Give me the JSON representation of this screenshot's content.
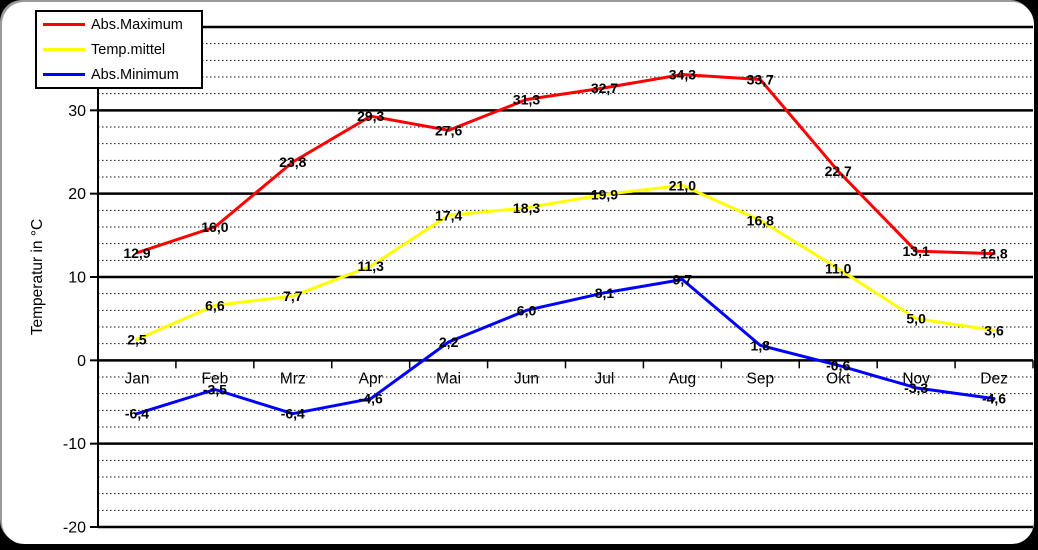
{
  "chart_data": {
    "type": "line",
    "title": "",
    "ylabel": "Temperatur in °C",
    "xlabel": "",
    "categories": [
      "Jan",
      "Feb",
      "Mrz",
      "Apr",
      "Mai",
      "Jun",
      "Jul",
      "Aug",
      "Sep",
      "Okt",
      "Nov",
      "Dez"
    ],
    "series": [
      {
        "name": "Abs.Maximum",
        "color": "#ff0000",
        "values": [
          12.9,
          16.0,
          23.8,
          29.3,
          27.6,
          31.3,
          32.7,
          34.3,
          33.7,
          22.7,
          13.1,
          12.8
        ],
        "labels": [
          "12,9",
          "16,0",
          "23,8",
          "29,3",
          "27,6",
          "31,3",
          "32,7",
          "34,3",
          "33,7",
          "22,7",
          "13,1",
          "12,8"
        ]
      },
      {
        "name": "Temp.mittel",
        "color": "#ffff00",
        "values": [
          2.5,
          6.6,
          7.7,
          11.3,
          17.4,
          18.3,
          19.9,
          21.0,
          16.8,
          11.0,
          5.0,
          3.6
        ],
        "labels": [
          "2,5",
          "6,6",
          "7,7",
          "11,3",
          "17,4",
          "18,3",
          "19,9",
          "21,0",
          "16,8",
          "11,0",
          "5,0",
          "3,6"
        ]
      },
      {
        "name": "Abs.Minimum",
        "color": "#0000ff",
        "values": [
          -6.4,
          -3.5,
          -6.4,
          -4.6,
          2.2,
          6.0,
          8.1,
          9.7,
          1.8,
          -0.6,
          -3.3,
          -4.6
        ],
        "labels": [
          "-6,4",
          "-3,5",
          "-6,4",
          "-4,6",
          "2,2",
          "6,0",
          "8,1",
          "9,7",
          "1,8",
          "-0,6",
          "-3,3",
          "-4,6"
        ]
      }
    ],
    "ylim": [
      -20,
      40
    ],
    "y_major_unit": 10,
    "y_minor_unit": 2,
    "y_tick_values": [
      30,
      20,
      10,
      0,
      -10,
      -20
    ],
    "y_tick_labels": [
      "30",
      "20",
      "10",
      "0",
      "-10",
      "-20"
    ],
    "grid": {
      "major": true,
      "minor": true
    },
    "legend_position": "top-left",
    "decimal_separator": ",",
    "axis_color": "#000000"
  }
}
